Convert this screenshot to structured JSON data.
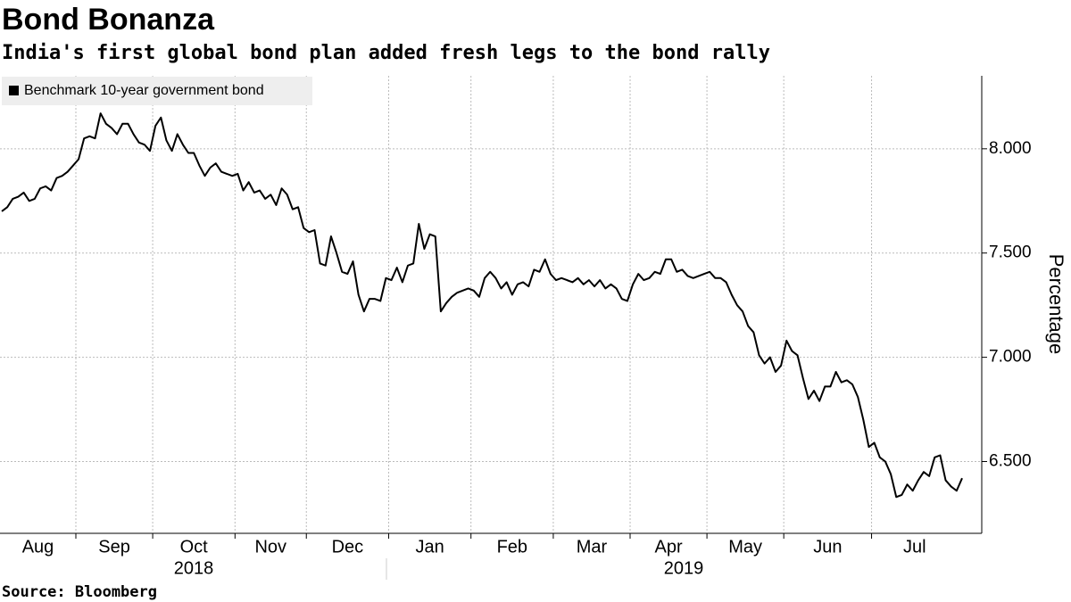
{
  "chart_data": {
    "type": "line",
    "title": "Bond Bonanza",
    "subtitle": "India's first global bond plan added fresh legs to the bond rally",
    "source": "Source: Bloomberg",
    "y_axis_label": "Percentage",
    "year_labels": [
      "2018",
      "2019"
    ],
    "categories": [
      "Aug",
      null,
      null,
      null,
      null,
      null,
      null,
      null,
      null,
      null,
      null,
      null,
      null,
      null,
      "Sep",
      null,
      null,
      null,
      null,
      null,
      null,
      null,
      null,
      null,
      null,
      null,
      null,
      null,
      "Oct",
      null,
      null,
      null,
      null,
      null,
      null,
      null,
      null,
      null,
      null,
      null,
      null,
      null,
      null,
      "Nov",
      null,
      null,
      null,
      null,
      null,
      null,
      null,
      null,
      null,
      null,
      null,
      null,
      "Dec",
      null,
      null,
      null,
      null,
      null,
      null,
      null,
      null,
      null,
      null,
      null,
      null,
      null,
      null,
      "Jan",
      null,
      null,
      null,
      null,
      null,
      null,
      null,
      null,
      null,
      null,
      null,
      null,
      null,
      null,
      "Feb",
      null,
      null,
      null,
      null,
      null,
      null,
      null,
      null,
      null,
      null,
      null,
      null,
      null,
      null,
      "Mar",
      null,
      null,
      null,
      null,
      null,
      null,
      null,
      null,
      null,
      null,
      null,
      null,
      null,
      "Apr",
      null,
      null,
      null,
      null,
      null,
      null,
      null,
      null,
      null,
      null,
      null,
      null,
      null,
      "May",
      null,
      null,
      null,
      null,
      null,
      null,
      null,
      null,
      null,
      null,
      null,
      null,
      null,
      "Jun",
      null,
      null,
      null,
      null,
      null,
      null,
      null,
      null,
      null,
      null,
      null,
      null,
      null,
      null,
      null,
      "Jul",
      null,
      null,
      null,
      null,
      null,
      null,
      null,
      null,
      null,
      null,
      null,
      null,
      null,
      null,
      null,
      null
    ],
    "series": [
      {
        "name": "Benchmark 10-year government bond",
        "color": "#000000",
        "values": [
          7.7,
          7.72,
          7.76,
          7.77,
          7.79,
          7.75,
          7.76,
          7.81,
          7.82,
          7.8,
          7.86,
          7.87,
          7.89,
          7.92,
          7.95,
          8.05,
          8.06,
          8.05,
          8.17,
          8.12,
          8.1,
          8.07,
          8.12,
          8.12,
          8.07,
          8.03,
          8.02,
          7.99,
          8.11,
          8.15,
          8.04,
          7.99,
          8.07,
          8.02,
          7.98,
          7.98,
          7.92,
          7.87,
          7.91,
          7.93,
          7.89,
          7.88,
          7.87,
          7.88,
          7.8,
          7.84,
          7.79,
          7.8,
          7.76,
          7.78,
          7.73,
          7.81,
          7.78,
          7.71,
          7.72,
          7.62,
          7.6,
          7.61,
          7.45,
          7.44,
          7.58,
          7.5,
          7.41,
          7.4,
          7.46,
          7.3,
          7.22,
          7.28,
          7.28,
          7.27,
          7.38,
          7.37,
          7.43,
          7.36,
          7.44,
          7.45,
          7.64,
          7.52,
          7.59,
          7.58,
          7.22,
          7.26,
          7.29,
          7.31,
          7.32,
          7.33,
          7.32,
          7.29,
          7.38,
          7.41,
          7.38,
          7.33,
          7.36,
          7.3,
          7.35,
          7.36,
          7.34,
          7.42,
          7.41,
          7.47,
          7.4,
          7.37,
          7.38,
          7.37,
          7.36,
          7.38,
          7.35,
          7.37,
          7.34,
          7.37,
          7.33,
          7.35,
          7.33,
          7.28,
          7.27,
          7.35,
          7.4,
          7.37,
          7.38,
          7.41,
          7.4,
          7.47,
          7.47,
          7.41,
          7.42,
          7.39,
          7.38,
          7.39,
          7.4,
          7.41,
          7.38,
          7.38,
          7.36,
          7.3,
          7.25,
          7.22,
          7.15,
          7.12,
          7.01,
          6.97,
          7.0,
          6.93,
          6.96,
          7.08,
          7.03,
          7.01,
          6.9,
          6.8,
          6.84,
          6.79,
          6.86,
          6.86,
          6.93,
          6.88,
          6.89,
          6.87,
          6.81,
          6.7,
          6.57,
          6.59,
          6.52,
          6.5,
          6.44,
          6.33,
          6.34,
          6.39,
          6.36,
          6.41,
          6.45,
          6.43,
          6.52,
          6.53,
          6.41,
          6.38,
          6.36,
          6.42
        ]
      }
    ],
    "ylim": [
      6.16,
      8.35
    ],
    "yticks": [
      {
        "value": 6.5,
        "label": "6.500"
      },
      {
        "value": 7,
        "label": "7.000"
      },
      {
        "value": 7.5,
        "label": "7.500"
      },
      {
        "value": 8,
        "label": "8.000"
      }
    ],
    "grid": true,
    "legend": "top-left"
  }
}
